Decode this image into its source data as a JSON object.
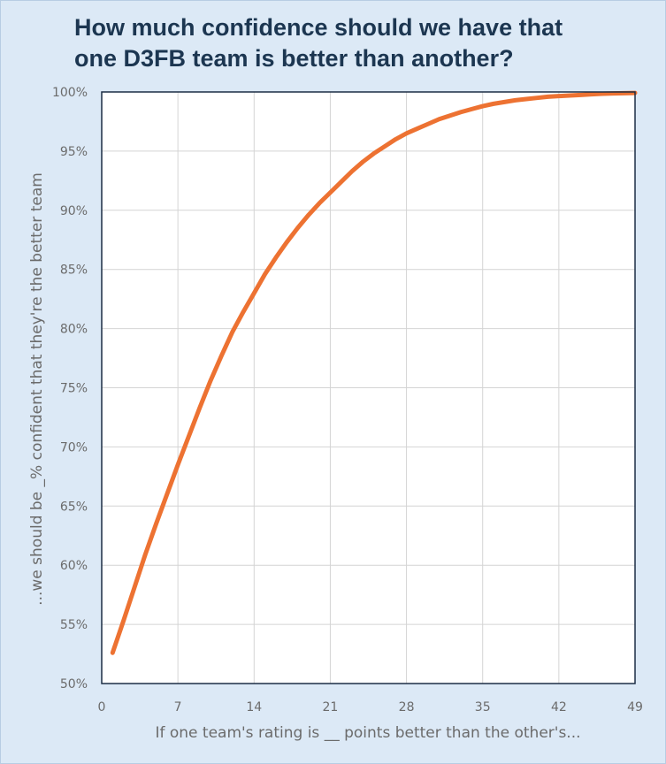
{
  "chart_data": {
    "type": "line",
    "title": "How much confidence should we have that\none D3FB team is better than another?",
    "xlabel": "If one team's rating is __ points better than the other's...",
    "ylabel": "...we should be _% confident that they're the better team",
    "xlim": [
      0,
      49
    ],
    "ylim": [
      50,
      100
    ],
    "x_ticks": [
      0,
      7,
      14,
      21,
      28,
      35,
      42,
      49
    ],
    "y_ticks": [
      50,
      55,
      60,
      65,
      70,
      75,
      80,
      85,
      90,
      95,
      100
    ],
    "y_tick_suffix": "%",
    "grid": true,
    "series": [
      {
        "color": "#ed7232",
        "x": [
          1,
          2,
          3,
          4,
          5,
          6,
          7,
          8,
          9,
          10,
          11,
          12,
          13,
          14,
          15,
          16,
          17,
          18,
          19,
          20,
          21,
          22,
          23,
          24,
          25,
          26,
          27,
          28,
          29,
          30,
          31,
          32,
          33,
          34,
          35,
          36,
          37,
          38,
          39,
          40,
          41,
          42,
          43,
          44,
          45,
          46,
          47,
          48,
          49
        ],
        "y": [
          52.6,
          55.3,
          58.1,
          60.9,
          63.5,
          66.0,
          68.5,
          70.9,
          73.3,
          75.6,
          77.7,
          79.7,
          81.4,
          83.0,
          84.6,
          86.0,
          87.3,
          88.5,
          89.6,
          90.6,
          91.5,
          92.4,
          93.3,
          94.1,
          94.8,
          95.4,
          96.0,
          96.5,
          96.9,
          97.3,
          97.7,
          98.0,
          98.3,
          98.55,
          98.8,
          99.0,
          99.15,
          99.3,
          99.4,
          99.5,
          99.6,
          99.65,
          99.7,
          99.75,
          99.8,
          99.85,
          99.88,
          99.9,
          99.92
        ]
      }
    ]
  }
}
